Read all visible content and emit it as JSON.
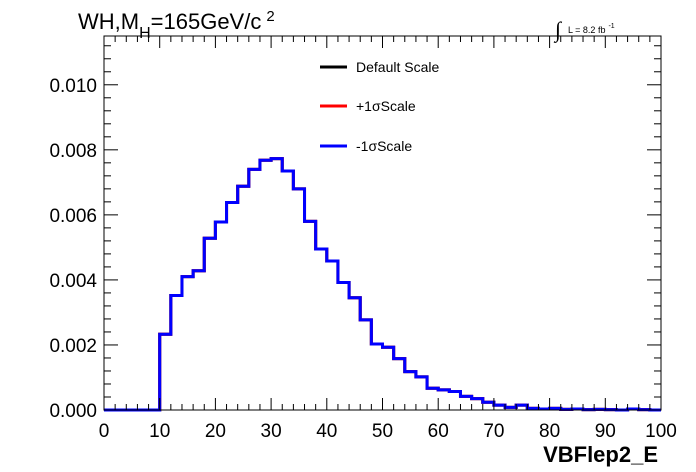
{
  "chart_data": {
    "type": "line",
    "title": {
      "main": "WH,M",
      "subscript": "H",
      "rest": "=165GeV/c",
      "superscript": "2"
    },
    "luminosity": {
      "integral": "∫",
      "text": "L = 8.2 fb",
      "superscript": "-1"
    },
    "xlabel": "VBFlep2_E",
    "ylabel": "",
    "xlim": [
      0,
      100
    ],
    "ylim": [
      0,
      0.0115
    ],
    "x_ticks": [
      0,
      10,
      20,
      30,
      40,
      50,
      60,
      70,
      80,
      90,
      100
    ],
    "x_tick_labels": [
      "0",
      "10",
      "20",
      "30",
      "40",
      "50",
      "60",
      "70",
      "80",
      "90",
      "100"
    ],
    "y_ticks": [
      0,
      0.002,
      0.004,
      0.006,
      0.008,
      0.01
    ],
    "y_tick_labels": [
      "0.000",
      "0.002",
      "0.004",
      "0.006",
      "0.008",
      "0.010"
    ],
    "bin_edges": [
      0,
      2,
      4,
      6,
      8,
      10,
      12,
      14,
      16,
      18,
      20,
      22,
      24,
      26,
      28,
      30,
      32,
      34,
      36,
      38,
      40,
      42,
      44,
      46,
      48,
      50,
      52,
      54,
      56,
      58,
      60,
      62,
      64,
      66,
      68,
      70,
      72,
      74,
      76,
      78,
      80,
      82,
      84,
      86,
      88,
      90,
      92,
      94,
      96,
      98,
      100
    ],
    "legend_position": "top-center",
    "series": [
      {
        "name": "Default Scale",
        "color": "#000000",
        "values": [
          0,
          0,
          0,
          0,
          0,
          0.00233,
          0.00352,
          0.0041,
          0.00428,
          0.00528,
          0.00578,
          0.00638,
          0.00688,
          0.0074,
          0.00768,
          0.00773,
          0.00735,
          0.0068,
          0.0058,
          0.00495,
          0.00458,
          0.00392,
          0.00345,
          0.00277,
          0.00203,
          0.00193,
          0.00158,
          0.00118,
          0.00102,
          0.00067,
          0.00062,
          0.00057,
          0.00042,
          0.00035,
          0.00024,
          0.00015,
          8e-05,
          0.00015,
          5e-05,
          3e-05,
          5e-05,
          2e-05,
          3e-05,
          1e-05,
          2e-05,
          1e-05,
          0,
          3e-05,
          1e-05,
          0
        ]
      },
      {
        "name": "+1σScale",
        "color": "#ff0000",
        "values": [
          0,
          0,
          0,
          0,
          0,
          0.00233,
          0.00352,
          0.0041,
          0.00428,
          0.00528,
          0.00578,
          0.00638,
          0.00688,
          0.0074,
          0.00768,
          0.00773,
          0.00735,
          0.0068,
          0.0058,
          0.00495,
          0.00458,
          0.00392,
          0.00345,
          0.00277,
          0.00203,
          0.00193,
          0.00158,
          0.00118,
          0.00102,
          0.00067,
          0.00062,
          0.00057,
          0.00042,
          0.00035,
          0.00024,
          0.00015,
          8e-05,
          0.00015,
          5e-05,
          3e-05,
          5e-05,
          2e-05,
          3e-05,
          1e-05,
          2e-05,
          1e-05,
          0,
          3e-05,
          1e-05,
          0
        ]
      },
      {
        "name": "-1σScale",
        "color": "#0000ff",
        "values": [
          0,
          0,
          0,
          0,
          0,
          0.00233,
          0.00352,
          0.0041,
          0.00428,
          0.00528,
          0.00578,
          0.00638,
          0.00688,
          0.0074,
          0.00768,
          0.00773,
          0.00735,
          0.0068,
          0.0058,
          0.00495,
          0.00458,
          0.00392,
          0.00345,
          0.00277,
          0.00203,
          0.00193,
          0.00158,
          0.00118,
          0.00102,
          0.00067,
          0.00062,
          0.00057,
          0.00042,
          0.00035,
          0.00024,
          0.00015,
          8e-05,
          0.00015,
          5e-05,
          3e-05,
          5e-05,
          2e-05,
          3e-05,
          1e-05,
          2e-05,
          1e-05,
          0,
          3e-05,
          1e-05,
          0
        ]
      }
    ]
  }
}
